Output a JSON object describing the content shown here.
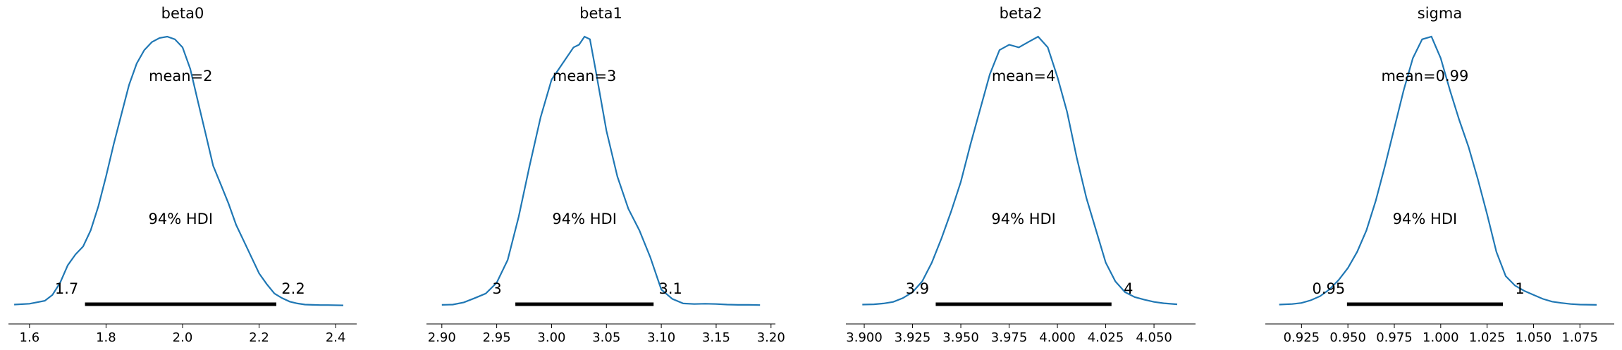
{
  "chart_data": [
    {
      "type": "line",
      "title": "beta0",
      "mean_label": "mean=2",
      "hdi_label": "94% HDI",
      "hdi": [
        1.745,
        2.245
      ],
      "hdi_low_label": "1.7",
      "hdi_high_label": "2.2",
      "xlim": [
        1.545,
        2.455
      ],
      "ylim": [
        0,
        1
      ],
      "xticks": [
        1.6,
        1.8,
        2.0,
        2.2,
        2.4
      ],
      "xtick_labels": [
        "1.6",
        "1.8",
        "2.0",
        "2.2",
        "2.4"
      ],
      "x": [
        1.56,
        1.6,
        1.64,
        1.66,
        1.68,
        1.7,
        1.72,
        1.74,
        1.76,
        1.78,
        1.8,
        1.82,
        1.84,
        1.86,
        1.88,
        1.9,
        1.92,
        1.94,
        1.96,
        1.98,
        2.0,
        2.02,
        2.04,
        2.06,
        2.08,
        2.1,
        2.12,
        2.14,
        2.16,
        2.18,
        2.2,
        2.22,
        2.24,
        2.26,
        2.28,
        2.3,
        2.32,
        2.34,
        2.36,
        2.38,
        2.42
      ],
      "y": [
        0.004,
        0.007,
        0.018,
        0.04,
        0.085,
        0.15,
        0.19,
        0.22,
        0.28,
        0.37,
        0.48,
        0.6,
        0.71,
        0.82,
        0.9,
        0.95,
        0.98,
        0.995,
        1.0,
        0.99,
        0.96,
        0.88,
        0.76,
        0.64,
        0.52,
        0.45,
        0.38,
        0.3,
        0.24,
        0.18,
        0.12,
        0.08,
        0.045,
        0.028,
        0.015,
        0.008,
        0.004,
        0.003,
        0.002,
        0.002,
        0.001
      ]
    },
    {
      "type": "line",
      "title": "beta1",
      "mean_label": "mean=3",
      "hdi_label": "94% HDI",
      "hdi": [
        2.967,
        3.093
      ],
      "hdi_low_label": "3",
      "hdi_high_label": "3.1",
      "xlim": [
        2.886,
        3.204
      ],
      "ylim": [
        0,
        1
      ],
      "xticks": [
        2.9,
        2.95,
        3.0,
        3.05,
        3.1,
        3.15,
        3.2
      ],
      "xtick_labels": [
        "2.90",
        "2.95",
        "3.00",
        "3.05",
        "3.10",
        "3.15",
        "3.20"
      ],
      "x": [
        2.9,
        2.91,
        2.92,
        2.93,
        2.94,
        2.95,
        2.96,
        2.97,
        2.98,
        2.99,
        3.0,
        3.01,
        3.02,
        3.025,
        3.03,
        3.035,
        3.04,
        3.05,
        3.06,
        3.07,
        3.08,
        3.09,
        3.1,
        3.11,
        3.12,
        3.13,
        3.14,
        3.15,
        3.16,
        3.17,
        3.18,
        3.19
      ],
      "y": [
        0.003,
        0.004,
        0.012,
        0.028,
        0.045,
        0.085,
        0.17,
        0.33,
        0.52,
        0.7,
        0.84,
        0.9,
        0.96,
        0.97,
        1.0,
        0.99,
        0.88,
        0.65,
        0.48,
        0.36,
        0.28,
        0.18,
        0.06,
        0.025,
        0.008,
        0.006,
        0.007,
        0.006,
        0.004,
        0.003,
        0.003,
        0.002
      ]
    },
    {
      "type": "line",
      "title": "beta2",
      "mean_label": "mean=4",
      "hdi_label": "94% HDI",
      "hdi": [
        3.937,
        4.028
      ],
      "hdi_low_label": "3.9",
      "hdi_high_label": "4",
      "xlim": [
        3.8905,
        4.0715
      ],
      "ylim": [
        0,
        1
      ],
      "xticks": [
        3.9,
        3.925,
        3.95,
        3.975,
        4.0,
        4.025,
        4.05
      ],
      "xtick_labels": [
        "3.900",
        "3.925",
        "3.950",
        "3.975",
        "4.000",
        "4.025",
        "4.050"
      ],
      "x": [
        3.899,
        3.905,
        3.91,
        3.915,
        3.92,
        3.925,
        3.93,
        3.935,
        3.94,
        3.945,
        3.95,
        3.955,
        3.96,
        3.965,
        3.97,
        3.975,
        3.98,
        3.985,
        3.99,
        3.995,
        4.0,
        4.005,
        4.01,
        4.015,
        4.02,
        4.025,
        4.03,
        4.035,
        4.04,
        4.045,
        4.05,
        4.055,
        4.062
      ],
      "y": [
        0.004,
        0.005,
        0.008,
        0.014,
        0.028,
        0.05,
        0.09,
        0.16,
        0.25,
        0.35,
        0.46,
        0.6,
        0.73,
        0.86,
        0.95,
        0.97,
        0.96,
        0.98,
        1.0,
        0.96,
        0.85,
        0.72,
        0.55,
        0.4,
        0.28,
        0.16,
        0.09,
        0.05,
        0.032,
        0.022,
        0.014,
        0.009,
        0.005
      ]
    },
    {
      "type": "line",
      "title": "sigma",
      "mean_label": "mean=0.99",
      "hdi_label": "94% HDI",
      "hdi": [
        0.9495,
        1.0335
      ],
      "hdi_low_label": "0.95",
      "hdi_high_label": "1",
      "xlim": [
        0.9055,
        1.0935
      ],
      "ylim": [
        0,
        1
      ],
      "xticks": [
        0.925,
        0.95,
        0.975,
        1.0,
        1.025,
        1.05,
        1.075
      ],
      "xtick_labels": [
        "0.925",
        "0.950",
        "0.975",
        "1.000",
        "1.025",
        "1.050",
        "1.075"
      ],
      "x": [
        0.913,
        0.92,
        0.925,
        0.93,
        0.935,
        0.94,
        0.945,
        0.95,
        0.955,
        0.96,
        0.965,
        0.97,
        0.975,
        0.98,
        0.985,
        0.99,
        0.995,
        1.0,
        1.005,
        1.01,
        1.015,
        1.02,
        1.025,
        1.03,
        1.035,
        1.04,
        1.045,
        1.05,
        1.055,
        1.06,
        1.065,
        1.07,
        1.075,
        1.084
      ],
      "y": [
        0.004,
        0.006,
        0.01,
        0.02,
        0.035,
        0.06,
        0.095,
        0.14,
        0.2,
        0.28,
        0.39,
        0.52,
        0.66,
        0.8,
        0.92,
        0.99,
        1.0,
        0.92,
        0.8,
        0.69,
        0.59,
        0.47,
        0.34,
        0.2,
        0.11,
        0.075,
        0.055,
        0.04,
        0.025,
        0.015,
        0.01,
        0.006,
        0.004,
        0.003
      ]
    }
  ]
}
